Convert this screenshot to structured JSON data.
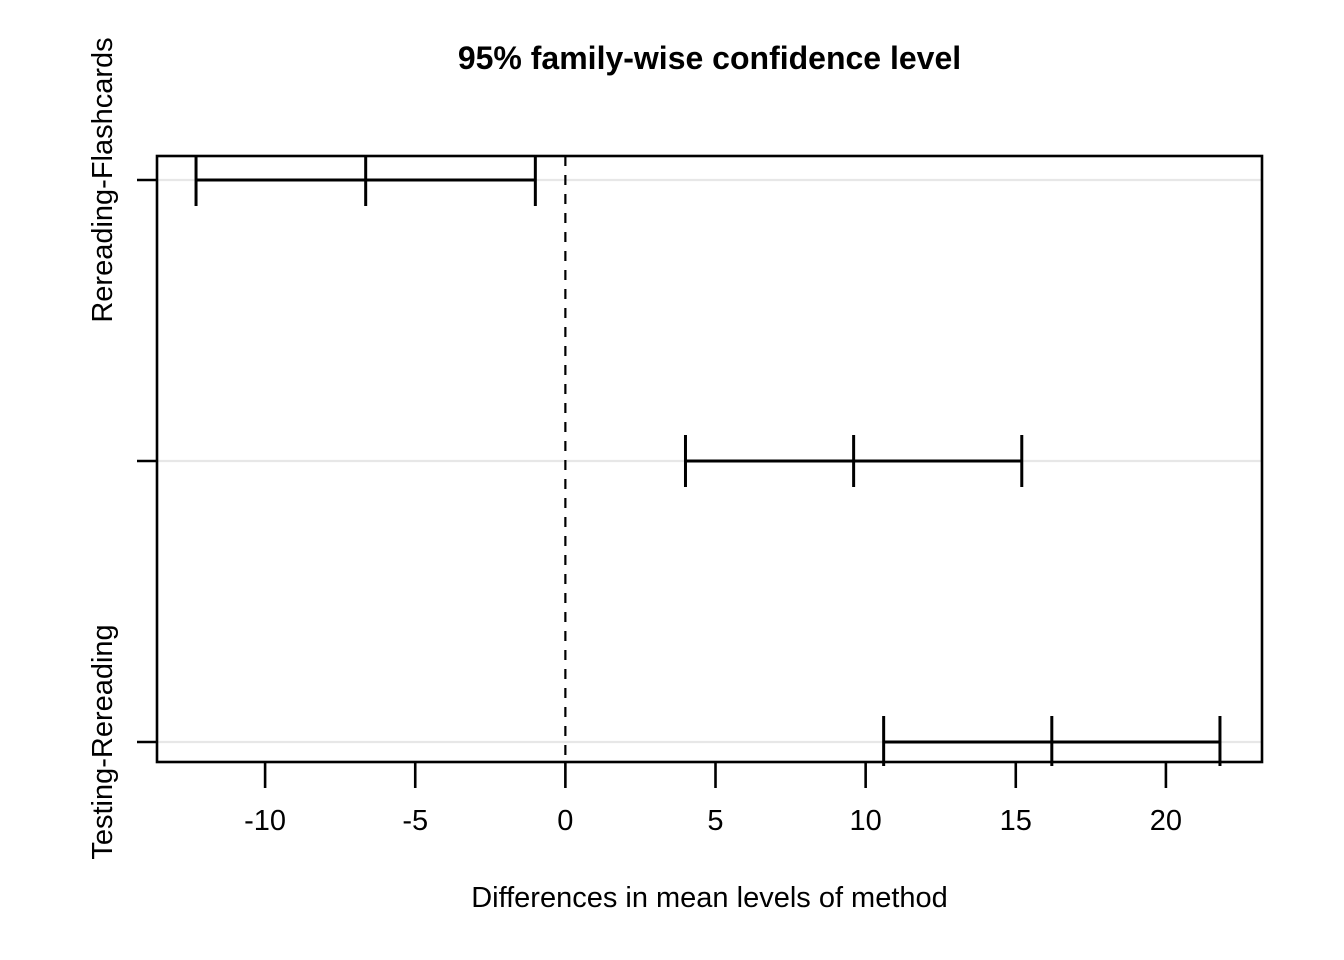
{
  "chart_data": {
    "type": "errorbar",
    "title": "95% family-wise confidence level",
    "xlabel": "Differences in mean levels of method",
    "ylabel": "",
    "xlim": [
      -13.6,
      23.2
    ],
    "x_ticks": [
      -10,
      -5,
      0,
      5,
      10,
      15,
      20
    ],
    "grid": true,
    "legend": "none",
    "zero_line": {
      "x": 0,
      "style": "dashed"
    },
    "comparisons": [
      {
        "label": "Rereading-Flashcards",
        "lower": -12.3,
        "diff": -6.65,
        "upper": -1.0
      },
      {
        "label": "",
        "lower": 4.0,
        "diff": 9.6,
        "upper": 15.2
      },
      {
        "label": "Testing-Rereading",
        "lower": 10.6,
        "diff": 16.2,
        "upper": 21.8
      }
    ],
    "colors": {
      "line": "#000000",
      "grid": "#e7e7e7",
      "background": "#ffffff"
    }
  }
}
